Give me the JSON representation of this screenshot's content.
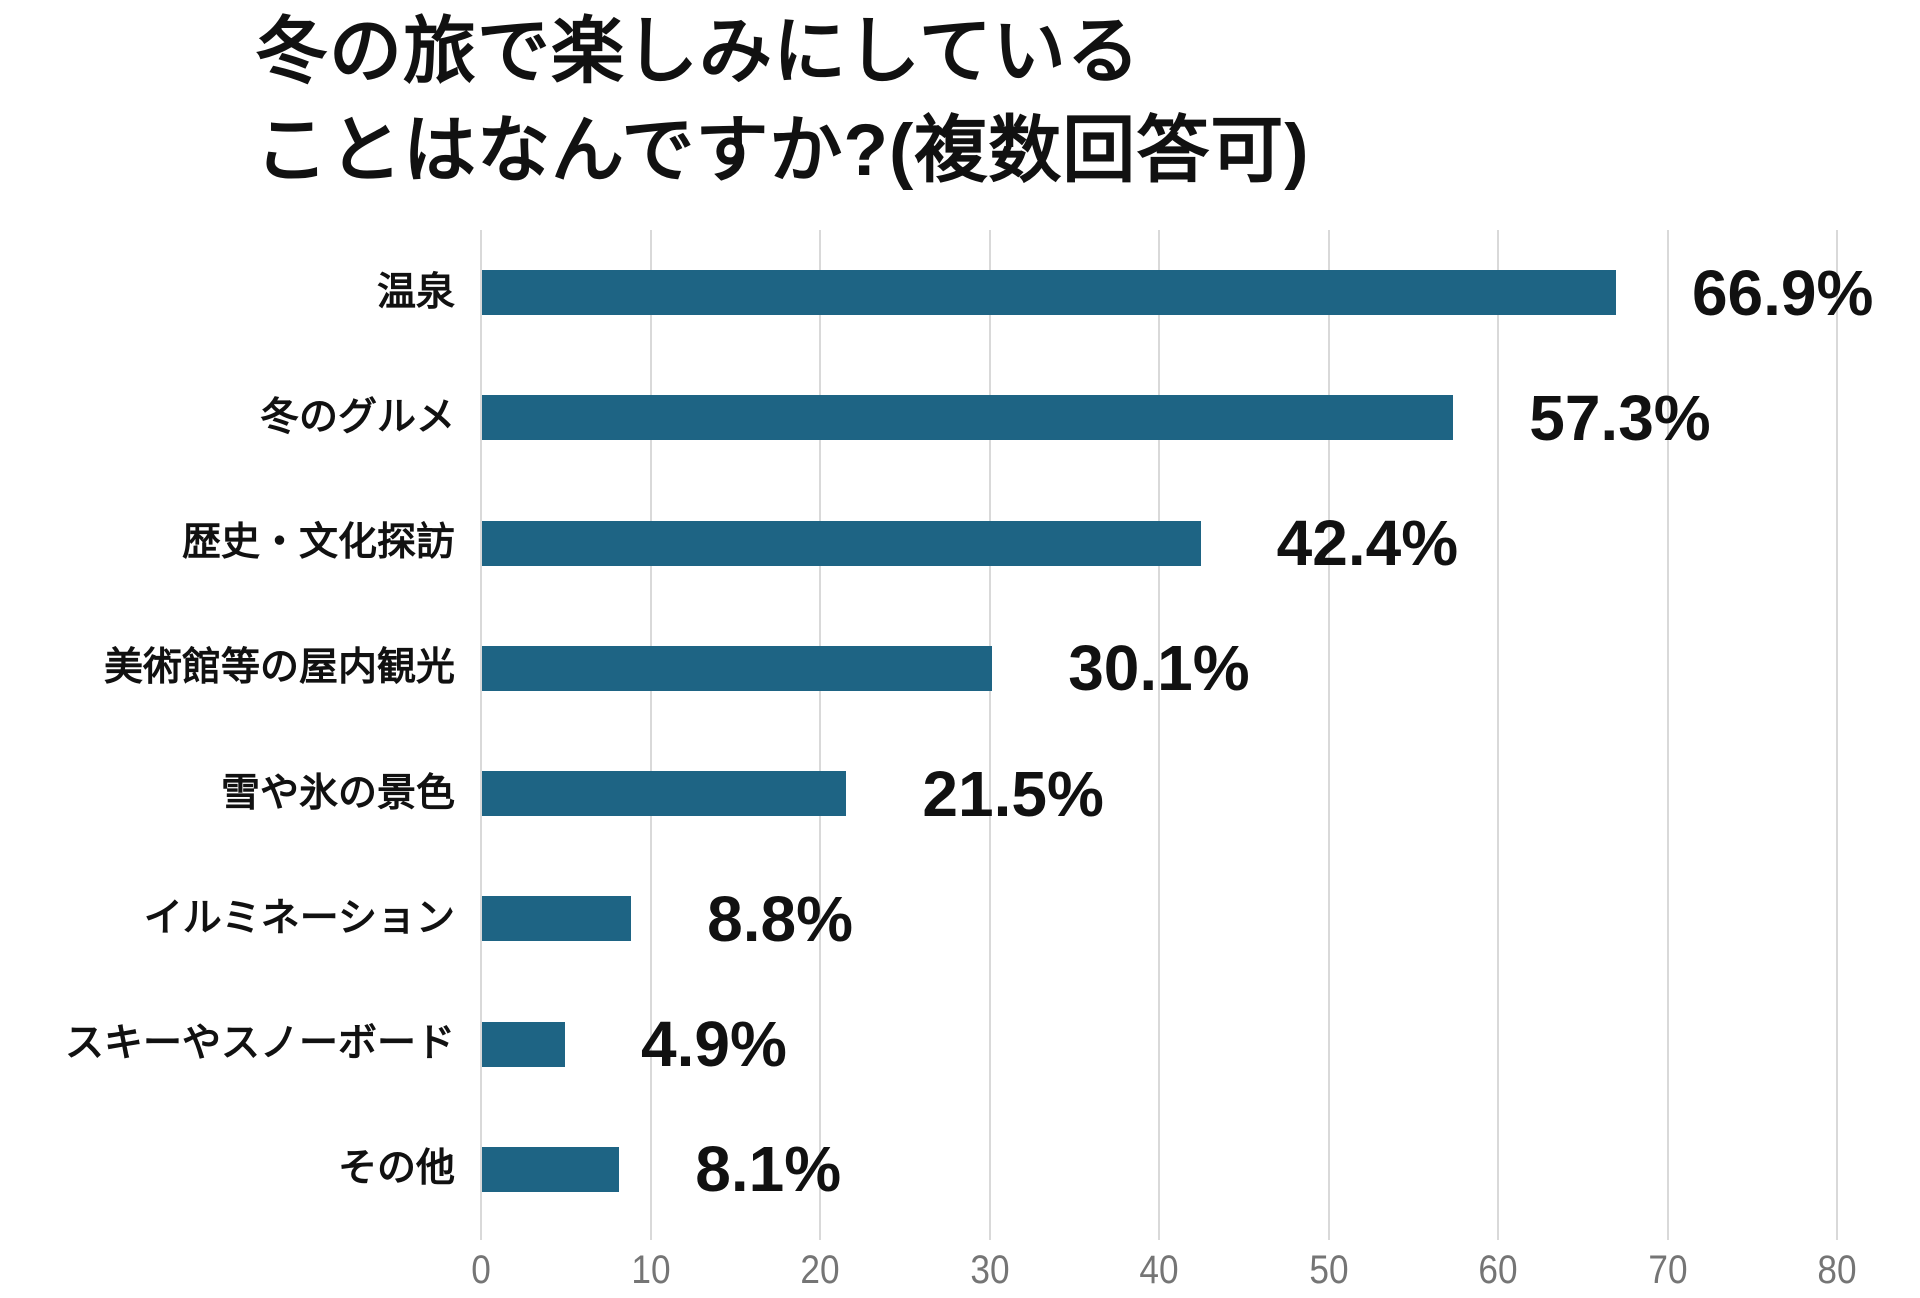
{
  "chart": {
    "title_line1": "冬の旅で楽しみにしている",
    "title_line2": "ことはなんですか?(複数回答可)"
  },
  "chart_data": {
    "type": "bar",
    "orientation": "horizontal",
    "title": "冬の旅で楽しみにしていることはなんですか?(複数回答可)",
    "categories": [
      "温泉",
      "冬のグルメ",
      "歴史・文化探訪",
      "美術館等の屋内観光",
      "雪や氷の景色",
      "イルミネーション",
      "スキーやスノーボード",
      "その他"
    ],
    "values": [
      66.9,
      57.3,
      42.4,
      30.1,
      21.5,
      8.8,
      4.9,
      8.1
    ],
    "value_labels": [
      "66.9%",
      "57.3%",
      "42.4%",
      "30.1%",
      "21.5%",
      "8.8%",
      "4.9%",
      "8.1%"
    ],
    "x_ticks": [
      0,
      10,
      20,
      30,
      40,
      50,
      60,
      70,
      80
    ],
    "xlim": [
      0,
      80
    ],
    "grid": true,
    "legend": false,
    "bar_color": "#1e6484",
    "gridline_color": "#d9d9d9",
    "tick_label_color": "#757575",
    "text_color": "#111111"
  }
}
